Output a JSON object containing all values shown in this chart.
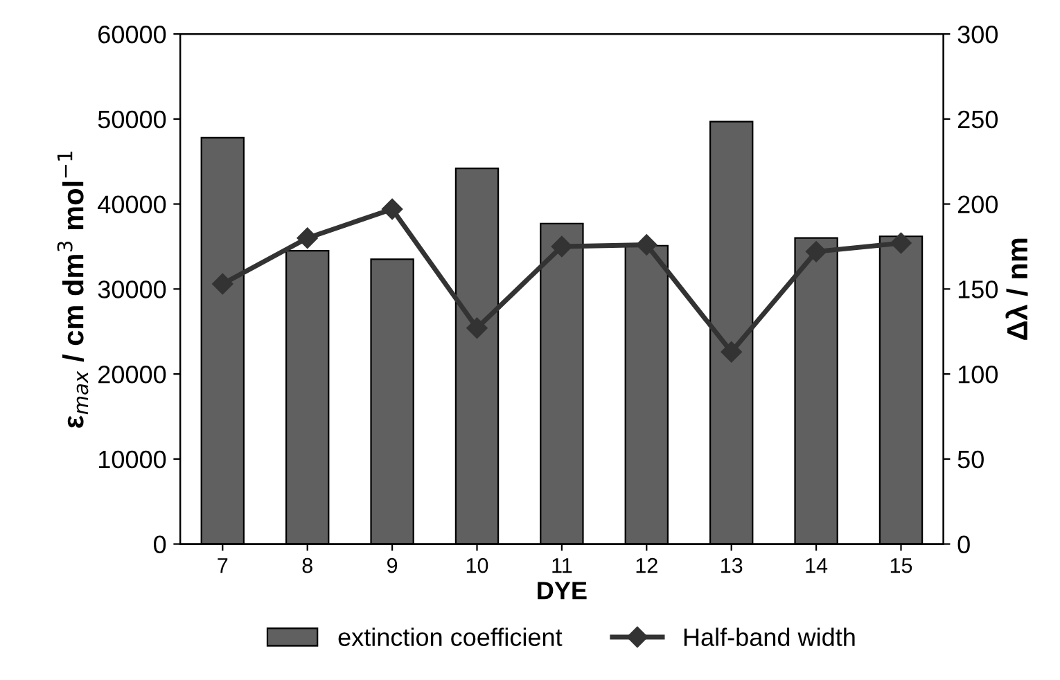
{
  "chart_data": {
    "type": "bar",
    "xlabel": "DYE",
    "ylabel": "ε$_{max}$ / cm dm$^{3}$ mol$^{−1}$",
    "y2label": "Δλ / nm",
    "categories": [
      "7",
      "8",
      "9",
      "10",
      "11",
      "12",
      "13",
      "14",
      "15"
    ],
    "series": [
      {
        "name": "extinction coefficient",
        "color": "#606060",
        "values": [
          47800,
          34500,
          33500,
          44200,
          37700,
          35100,
          49700,
          36000,
          36200
        ]
      },
      {
        "name": "Half-band width",
        "type": "line",
        "axis": "y2",
        "color": "#333333",
        "marker": "diamond",
        "values": [
          153,
          180,
          197,
          127,
          175,
          176,
          113,
          172,
          177
        ]
      }
    ],
    "ylim": [
      0,
      60000
    ],
    "yticks": [
      0,
      10000,
      20000,
      30000,
      40000,
      50000,
      60000
    ],
    "y2lim": [
      0,
      300
    ],
    "y2ticks": [
      0,
      50,
      100,
      150,
      200,
      250,
      300
    ],
    "grid": false,
    "legend": "bottom"
  }
}
